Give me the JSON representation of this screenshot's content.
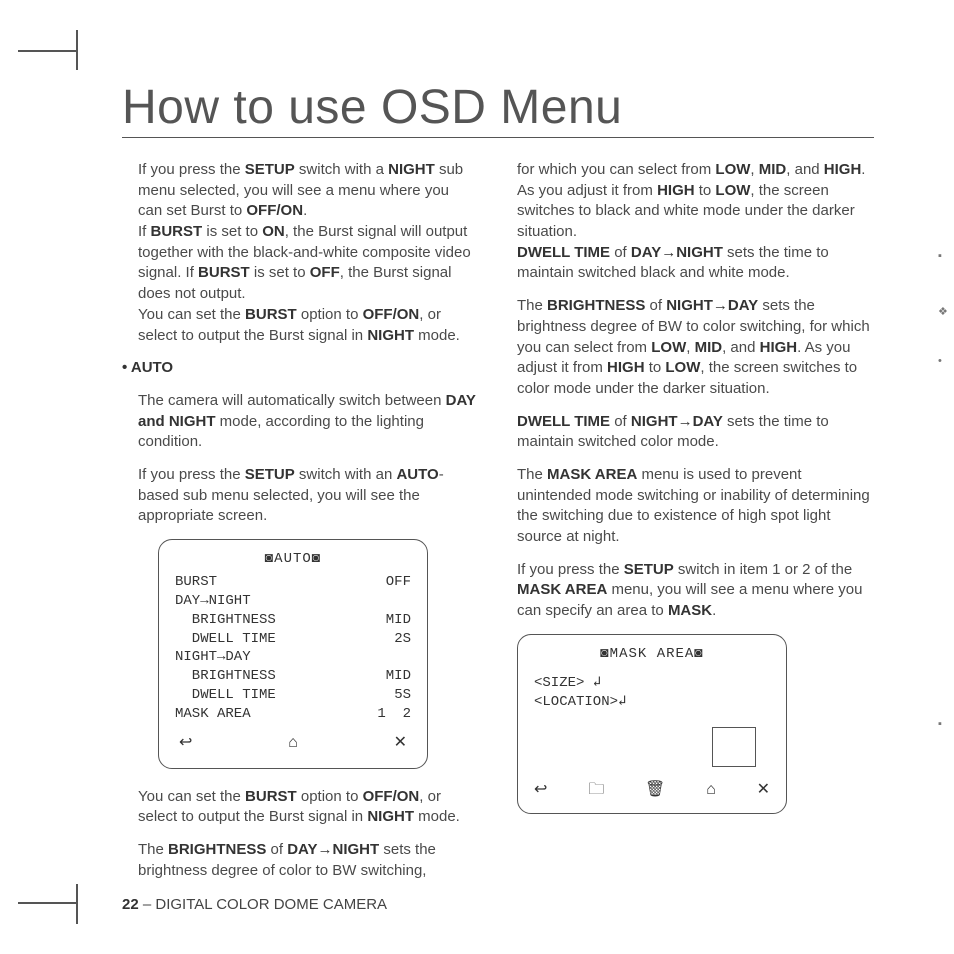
{
  "title": "How to use OSD Menu",
  "left": {
    "p1a": "If you press the ",
    "p1b": "SETUP",
    "p1c": " switch with a ",
    "p1d": "NIGHT",
    "p1e": " sub menu selected, you will see a menu where you can set Burst to ",
    "p1f": "OFF/ON",
    "p1g": ".",
    "p2a": "If ",
    "p2b": "BURST",
    "p2c": " is set to ",
    "p2d": "ON",
    "p2e": ", the Burst signal will output together with the black-and-white composite video signal. If ",
    "p2f": "BURST",
    "p2g": " is set to ",
    "p2h": "OFF",
    "p2i": ", the Burst signal does not output.",
    "p3a": "You can set the ",
    "p3b": "BURST",
    "p3c": " option to ",
    "p3d": "OFF/ON",
    "p3e": ", or select to output the Burst signal in ",
    "p3f": "NIGHT",
    "p3g": " mode.",
    "auto_label": "AUTO",
    "p4a": "The camera will automatically switch between ",
    "p4b": "DAY and NIGHT",
    "p4c": " mode, according to the lighting condition.",
    "p5a": "If you press the ",
    "p5b": "SETUP",
    "p5c": " switch with an ",
    "p5d": "AUTO",
    "p5e": "-based sub menu selected, you will see the appropriate screen.",
    "p6a": "You can set the ",
    "p6b": "BURST",
    "p6c": " option to ",
    "p6d": "OFF/ON",
    "p6e": ", or select to output the Burst signal in ",
    "p6f": "NIGHT",
    "p6g": " mode.",
    "p7a": "The ",
    "p7b": "BRIGHTNESS",
    "p7c": " of ",
    "p7d": "DAY",
    "p7e": "NIGHT",
    "p7f": " sets the brightness degree of color to BW switching,"
  },
  "right": {
    "p1a": "for which you can select from ",
    "p1b": "LOW",
    "p1c": ", ",
    "p1d": "MID",
    "p1e": ", and ",
    "p1f": "HIGH",
    "p1g": ". As you adjust it from ",
    "p1h": "HIGH",
    "p1i": " to ",
    "p1j": "LOW",
    "p1k": ", the screen switches to black and white mode under the darker situation.",
    "p2a": "DWELL TIME",
    "p2b": " of ",
    "p2c": "DAY",
    "p2d": "NIGHT",
    "p2e": " sets the time to maintain switched black and white mode.",
    "p3a": "The ",
    "p3b": "BRIGHTNESS",
    "p3c": " of ",
    "p3d": "NIGHT",
    "p3e": "DAY",
    "p3f": " sets the brightness degree of BW to color switching, for which you can select from ",
    "p3g": "LOW",
    "p3h": ", ",
    "p3i": "MID",
    "p3j": ", and ",
    "p3k": "HIGH",
    "p3l": ". As you adjust it from ",
    "p3m": "HIGH",
    "p3n": " to ",
    "p3o": "LOW",
    "p3p": ", the screen switches to color mode under the darker situation.",
    "p4a": "DWELL TIME",
    "p4b": " of ",
    "p4c": "NIGHT",
    "p4d": "DAY",
    "p4e": " sets the time to maintain switched color mode.",
    "p5a": "The ",
    "p5b": "MASK AREA",
    "p5c": " menu is used to prevent unintended mode switching or inability of determining the switching due to existence of high spot light source at night.",
    "p6a": "If you press the ",
    "p6b": "SETUP",
    "p6c": " switch in item 1 or 2 of the ",
    "p6d": "MASK AREA",
    "p6e": " menu, you will see a menu where you can specify an area to ",
    "p6f": "MASK",
    "p6g": "."
  },
  "osd_auto": {
    "title": "◙AUTO◙",
    "r1l": "BURST",
    "r1r": "OFF",
    "r2l": "DAY→NIGHT",
    "r3l": "  BRIGHTNESS",
    "r3r": "MID",
    "r4l": "  DWELL TIME",
    "r4r": "2S",
    "r5l": "NIGHT→DAY",
    "r6l": "  BRIGHTNESS",
    "r6r": "MID",
    "r7l": "  DWELL TIME",
    "r7r": "5S",
    "r8l": "MASK AREA",
    "r8r": "1  2",
    "icon_back": "↩",
    "icon_home": "⌂",
    "icon_close": "✕"
  },
  "osd_mask": {
    "title": "◙MASK AREA◙",
    "line1": "<SIZE> ↲",
    "line2": "<LOCATION>↲",
    "icon_back": "↩",
    "icon_save": "🗀",
    "icon_trash": "🗑",
    "icon_home": "⌂",
    "icon_close": "✕"
  },
  "footer": {
    "page": "22",
    "text": " – DIGITAL COLOR DOME CAMERA"
  },
  "arrow": "→"
}
